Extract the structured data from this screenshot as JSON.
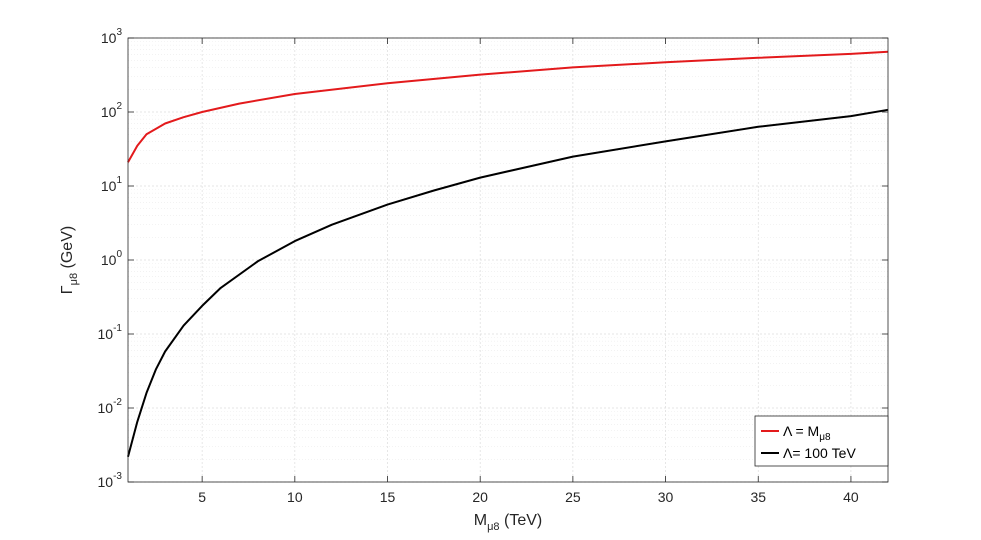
{
  "chart_data": {
    "type": "line",
    "title": "",
    "xlabel": {
      "main": "M",
      "sub": "μ8",
      "suffix": " (TeV)"
    },
    "ylabel": {
      "main": "Γ",
      "sub": "μ8",
      "suffix": " (GeV)"
    },
    "xlim": [
      1,
      42
    ],
    "ylim": [
      0.001,
      1000
    ],
    "yscale": "log",
    "grid": true,
    "legend_position": "bottom-right",
    "x_ticks": [
      "5",
      "10",
      "15",
      "20",
      "25",
      "30",
      "35",
      "40"
    ],
    "y_ticks": [
      {
        "base": "10",
        "exp": "-3"
      },
      {
        "base": "10",
        "exp": "-2"
      },
      {
        "base": "10",
        "exp": "-1"
      },
      {
        "base": "10",
        "exp": "0"
      },
      {
        "base": "10",
        "exp": "1"
      },
      {
        "base": "10",
        "exp": "2"
      },
      {
        "base": "10",
        "exp": "3"
      }
    ],
    "series": [
      {
        "legend": {
          "main": "Λ = M",
          "sub": "μ8"
        },
        "color": "#e31a1c",
        "x": [
          1,
          1.5,
          2,
          3,
          4,
          5,
          7,
          10,
          15,
          20,
          25,
          30,
          35,
          40,
          42
        ],
        "y": [
          21,
          35,
          50,
          70,
          85,
          100,
          130,
          175,
          245,
          320,
          400,
          470,
          540,
          610,
          650
        ]
      },
      {
        "legend": {
          "main": "Λ= 100 TeV",
          "sub": ""
        },
        "color": "#000000",
        "x": [
          1,
          1.5,
          2,
          2.5,
          3,
          4,
          5,
          6,
          8,
          10,
          12,
          15,
          17.5,
          20,
          22.5,
          25,
          30,
          35,
          40,
          42
        ],
        "y": [
          0.0022,
          0.0065,
          0.016,
          0.033,
          0.058,
          0.13,
          0.24,
          0.42,
          0.96,
          1.8,
          3.0,
          5.6,
          8.7,
          13,
          18,
          25,
          40,
          63,
          88,
          107
        ]
      }
    ]
  }
}
